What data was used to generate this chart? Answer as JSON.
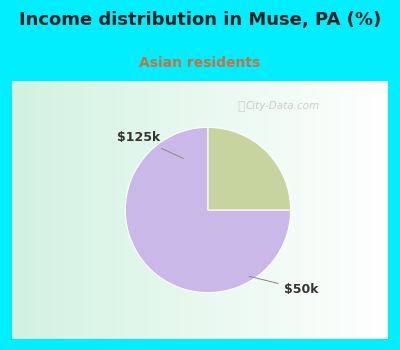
{
  "title": "Income distribution in Muse, PA (%)",
  "subtitle": "Asian residents",
  "subtitle_color": "#c87040",
  "title_color": "#222222",
  "title_fontsize": 13,
  "subtitle_fontsize": 10,
  "background_color": "#00eeff",
  "slices": [
    75,
    25
  ],
  "labels": [
    "$50k",
    "$125k"
  ],
  "colors": [
    "#c9b8e8",
    "#c8d4a0"
  ],
  "watermark": "City-Data.com",
  "startangle": 90,
  "figsize": [
    4.0,
    3.5
  ],
  "dpi": 100,
  "panel_bg_left": "#d0ecd8",
  "panel_bg_right": "#f0f8f0",
  "border_color": "#00eeff",
  "border_width": 8
}
